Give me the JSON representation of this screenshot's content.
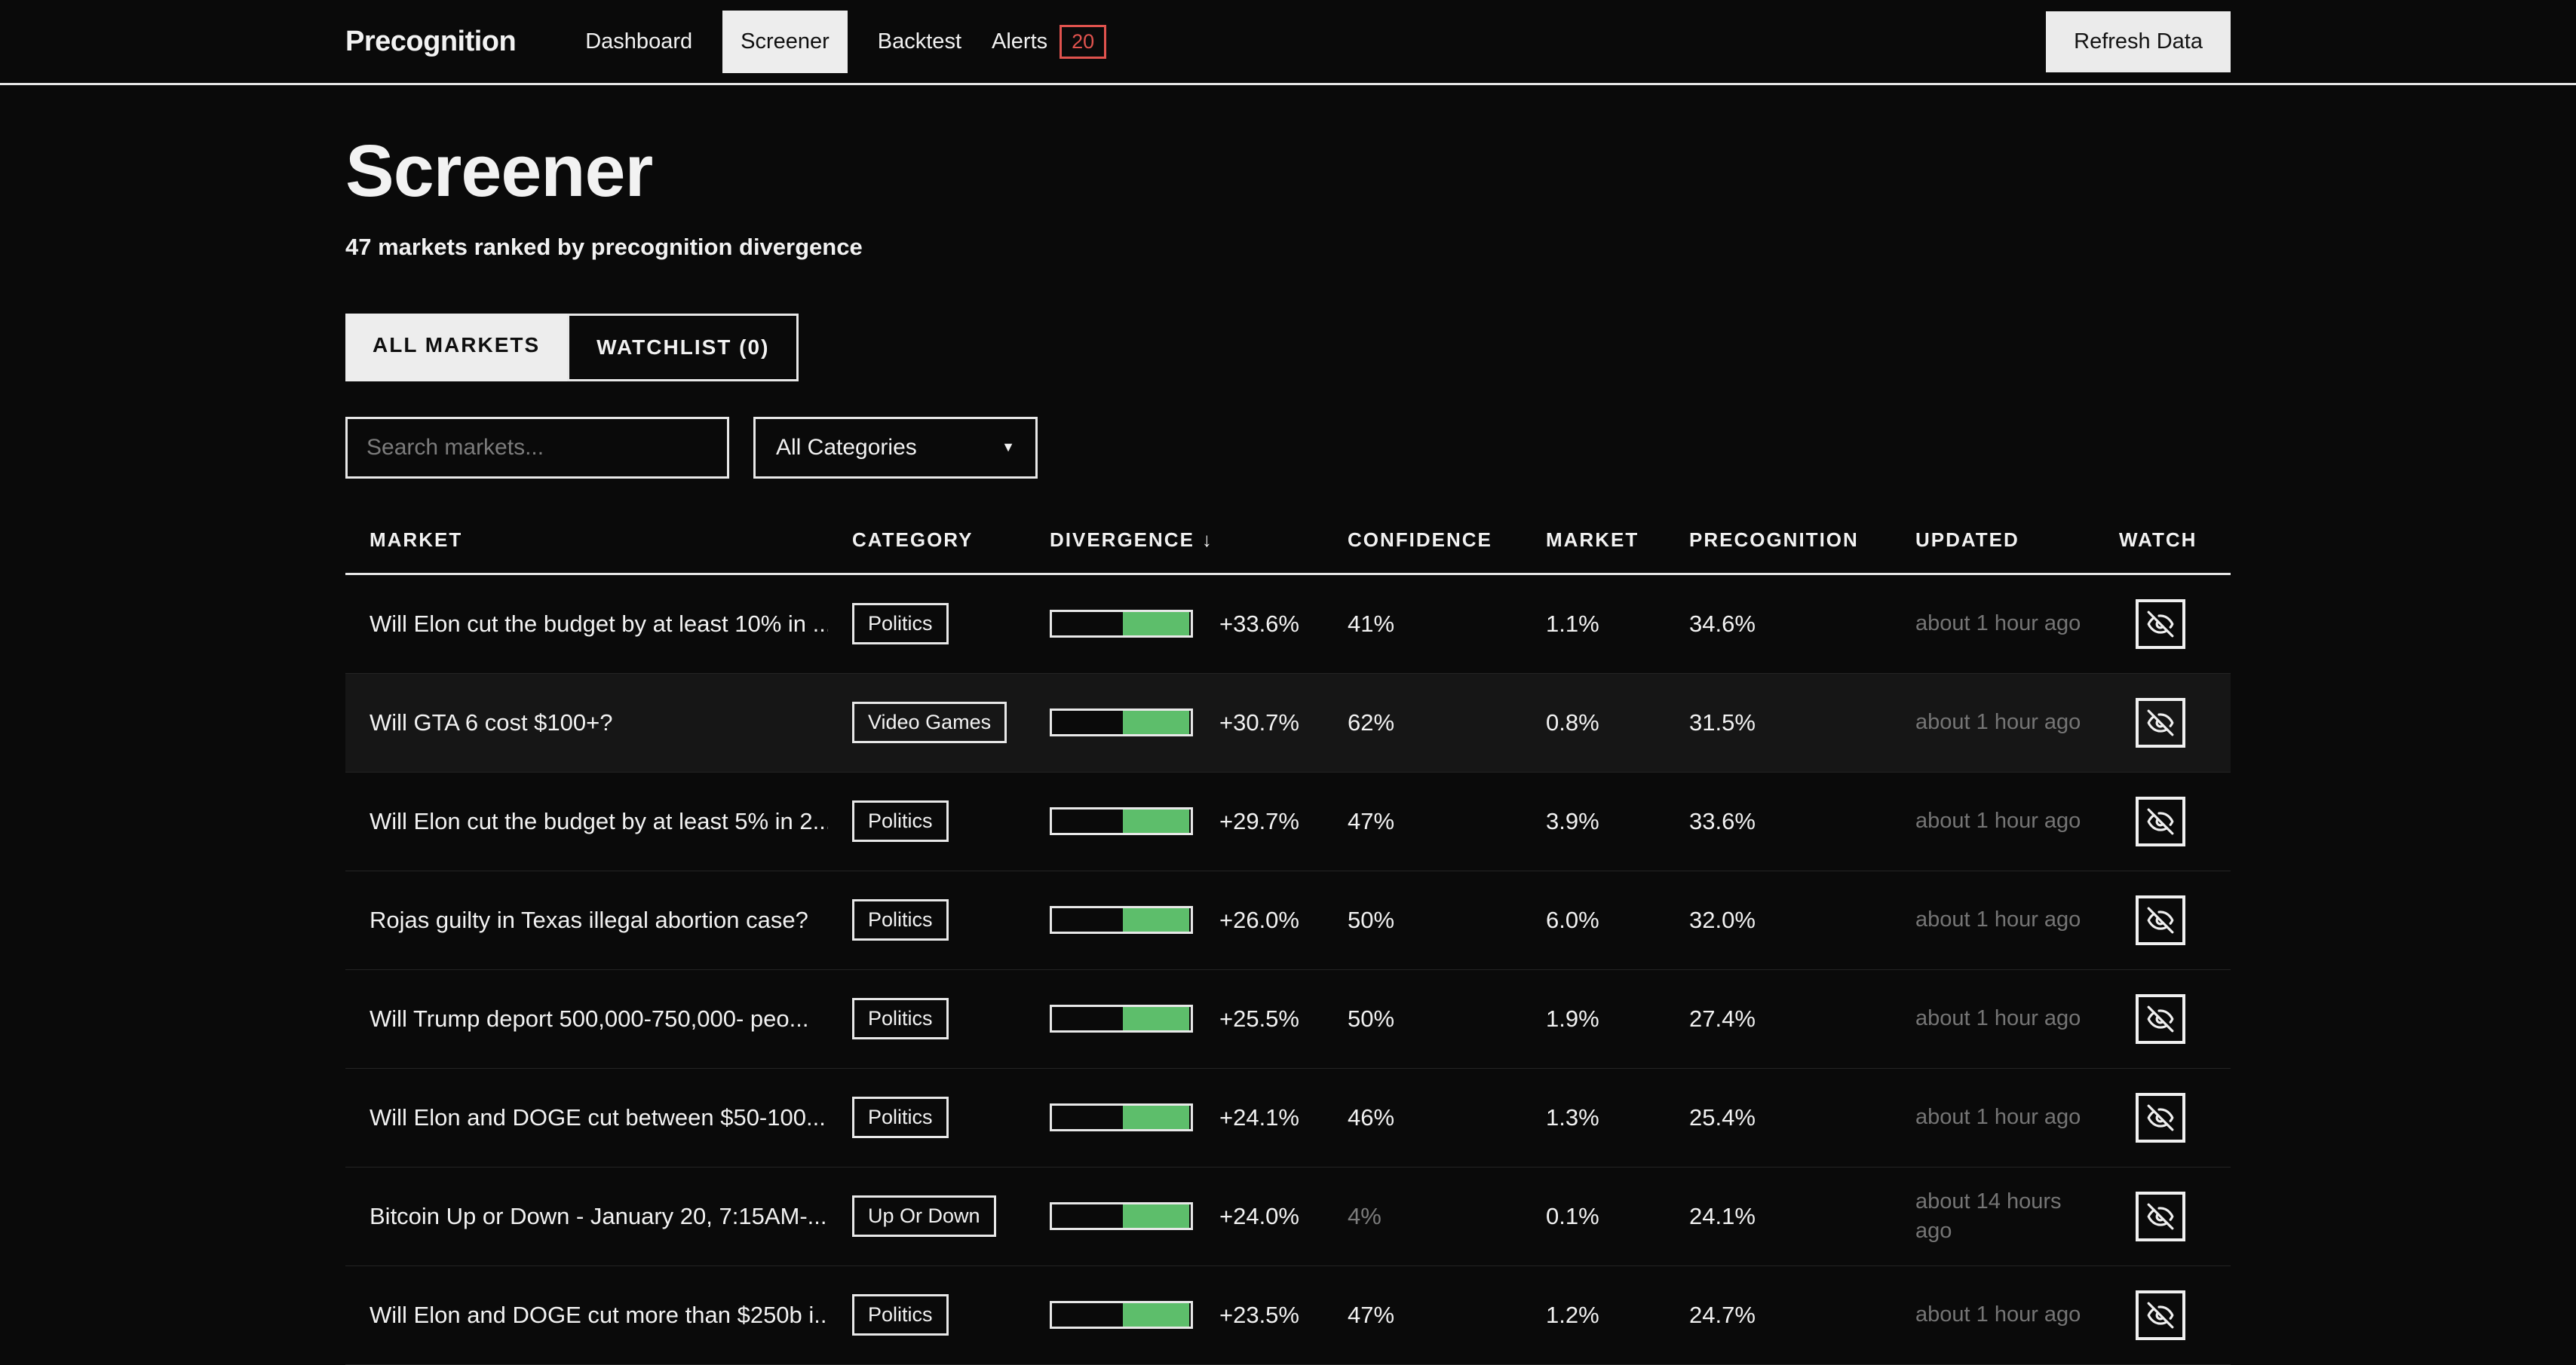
{
  "header": {
    "logo": "Precognition",
    "nav": [
      {
        "label": "Dashboard",
        "active": false
      },
      {
        "label": "Screener",
        "active": true
      },
      {
        "label": "Backtest",
        "active": false
      },
      {
        "label": "Alerts",
        "active": false,
        "badge": "20"
      }
    ],
    "refresh_label": "Refresh Data"
  },
  "page": {
    "title": "Screener",
    "subtitle": "47 markets ranked by precognition divergence",
    "tabs": [
      {
        "label": "ALL MARKETS",
        "active": true
      },
      {
        "label": "WATCHLIST (0)",
        "active": false
      }
    ],
    "search_placeholder": "Search markets...",
    "category_filter_value": "All Categories"
  },
  "table": {
    "columns": [
      "MARKET",
      "CATEGORY",
      "DIVERGENCE",
      "CONFIDENCE",
      "MARKET",
      "PRECOGNITION",
      "UPDATED",
      "WATCH"
    ],
    "sort": {
      "column": "DIVERGENCE",
      "direction": "desc",
      "arrow": "↓"
    },
    "rows": [
      {
        "market": "Will Elon cut the budget by at least 10% in ...",
        "category": "Politics",
        "divergence": "+33.6%",
        "divergence_value": 33.6,
        "confidence": "41%",
        "confidence_dim": false,
        "market_prob": "1.1%",
        "precognition": "34.6%",
        "updated": "about 1 hour ago",
        "highlighted": false
      },
      {
        "market": "Will GTA 6 cost $100+?",
        "category": "Video Games",
        "divergence": "+30.7%",
        "divergence_value": 30.7,
        "confidence": "62%",
        "confidence_dim": false,
        "market_prob": "0.8%",
        "precognition": "31.5%",
        "updated": "about 1 hour ago",
        "highlighted": true
      },
      {
        "market": "Will Elon cut the budget by at least 5% in 2...",
        "category": "Politics",
        "divergence": "+29.7%",
        "divergence_value": 29.7,
        "confidence": "47%",
        "confidence_dim": false,
        "market_prob": "3.9%",
        "precognition": "33.6%",
        "updated": "about 1 hour ago",
        "highlighted": false
      },
      {
        "market": "Rojas guilty in Texas illegal abortion case?",
        "category": "Politics",
        "divergence": "+26.0%",
        "divergence_value": 26.0,
        "confidence": "50%",
        "confidence_dim": false,
        "market_prob": "6.0%",
        "precognition": "32.0%",
        "updated": "about 1 hour ago",
        "highlighted": false
      },
      {
        "market": "Will Trump deport 500,000-750,000- peo...",
        "category": "Politics",
        "divergence": "+25.5%",
        "divergence_value": 25.5,
        "confidence": "50%",
        "confidence_dim": false,
        "market_prob": "1.9%",
        "precognition": "27.4%",
        "updated": "about 1 hour ago",
        "highlighted": false
      },
      {
        "market": "Will Elon and DOGE cut between $50-100...",
        "category": "Politics",
        "divergence": "+24.1%",
        "divergence_value": 24.1,
        "confidence": "46%",
        "confidence_dim": false,
        "market_prob": "1.3%",
        "precognition": "25.4%",
        "updated": "about 1 hour ago",
        "highlighted": false
      },
      {
        "market": "Bitcoin Up or Down - January 20, 7:15AM-...",
        "category": "Up Or Down",
        "divergence": "+24.0%",
        "divergence_value": 24.0,
        "confidence": "4%",
        "confidence_dim": true,
        "market_prob": "0.1%",
        "precognition": "24.1%",
        "updated": "about 14 hours ago",
        "highlighted": false
      },
      {
        "market": "Will Elon and DOGE cut more than $250b i...",
        "category": "Politics",
        "divergence": "+23.5%",
        "divergence_value": 23.5,
        "confidence": "47%",
        "confidence_dim": false,
        "market_prob": "1.2%",
        "precognition": "24.7%",
        "updated": "about 1 hour ago",
        "highlighted": false
      }
    ]
  },
  "colors": {
    "background": "#0a0a0a",
    "accent_green": "#5dbe6b",
    "alert_red": "#e0534e",
    "light": "#ededed",
    "muted_text": "#757575"
  }
}
